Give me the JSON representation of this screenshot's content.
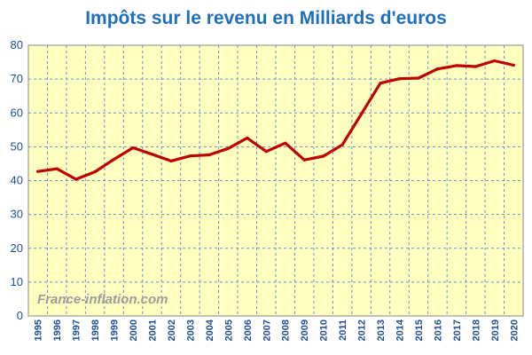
{
  "chart_data": {
    "type": "line",
    "title": "Impôts sur le revenu en Milliards d'euros",
    "watermark": "France-inflation.com",
    "x": [
      "1995",
      "1996",
      "1997",
      "1998",
      "1999",
      "2000",
      "2001",
      "2002",
      "2003",
      "2004",
      "2005",
      "2006",
      "2007",
      "2008",
      "2009",
      "2010",
      "2011",
      "2012",
      "2013",
      "2014",
      "2015",
      "2016",
      "2017",
      "2018",
      "2019",
      "2020"
    ],
    "series": [
      {
        "values": [
          42.7,
          43.5,
          40.4,
          42.6,
          46.3,
          49.7,
          47.8,
          45.8,
          47.3,
          47.6,
          49.5,
          52.6,
          48.6,
          51.1,
          46.1,
          47.2,
          50.6,
          59.7,
          68.8,
          70.1,
          70.3,
          73.0,
          74.0,
          73.7,
          75.4,
          74.1
        ]
      }
    ],
    "ylim": [
      0,
      80
    ],
    "yticks": [
      "0",
      "10",
      "20",
      "30",
      "40",
      "50",
      "60",
      "70",
      "80"
    ],
    "grid": true,
    "colors": {
      "line": "#c00000",
      "plot_background": "#ffffc0",
      "gridline": "#6a8fcf",
      "title": "#1f6fc0",
      "tick_labels": "#1f4e96",
      "watermark": "#9c9c9c"
    }
  }
}
